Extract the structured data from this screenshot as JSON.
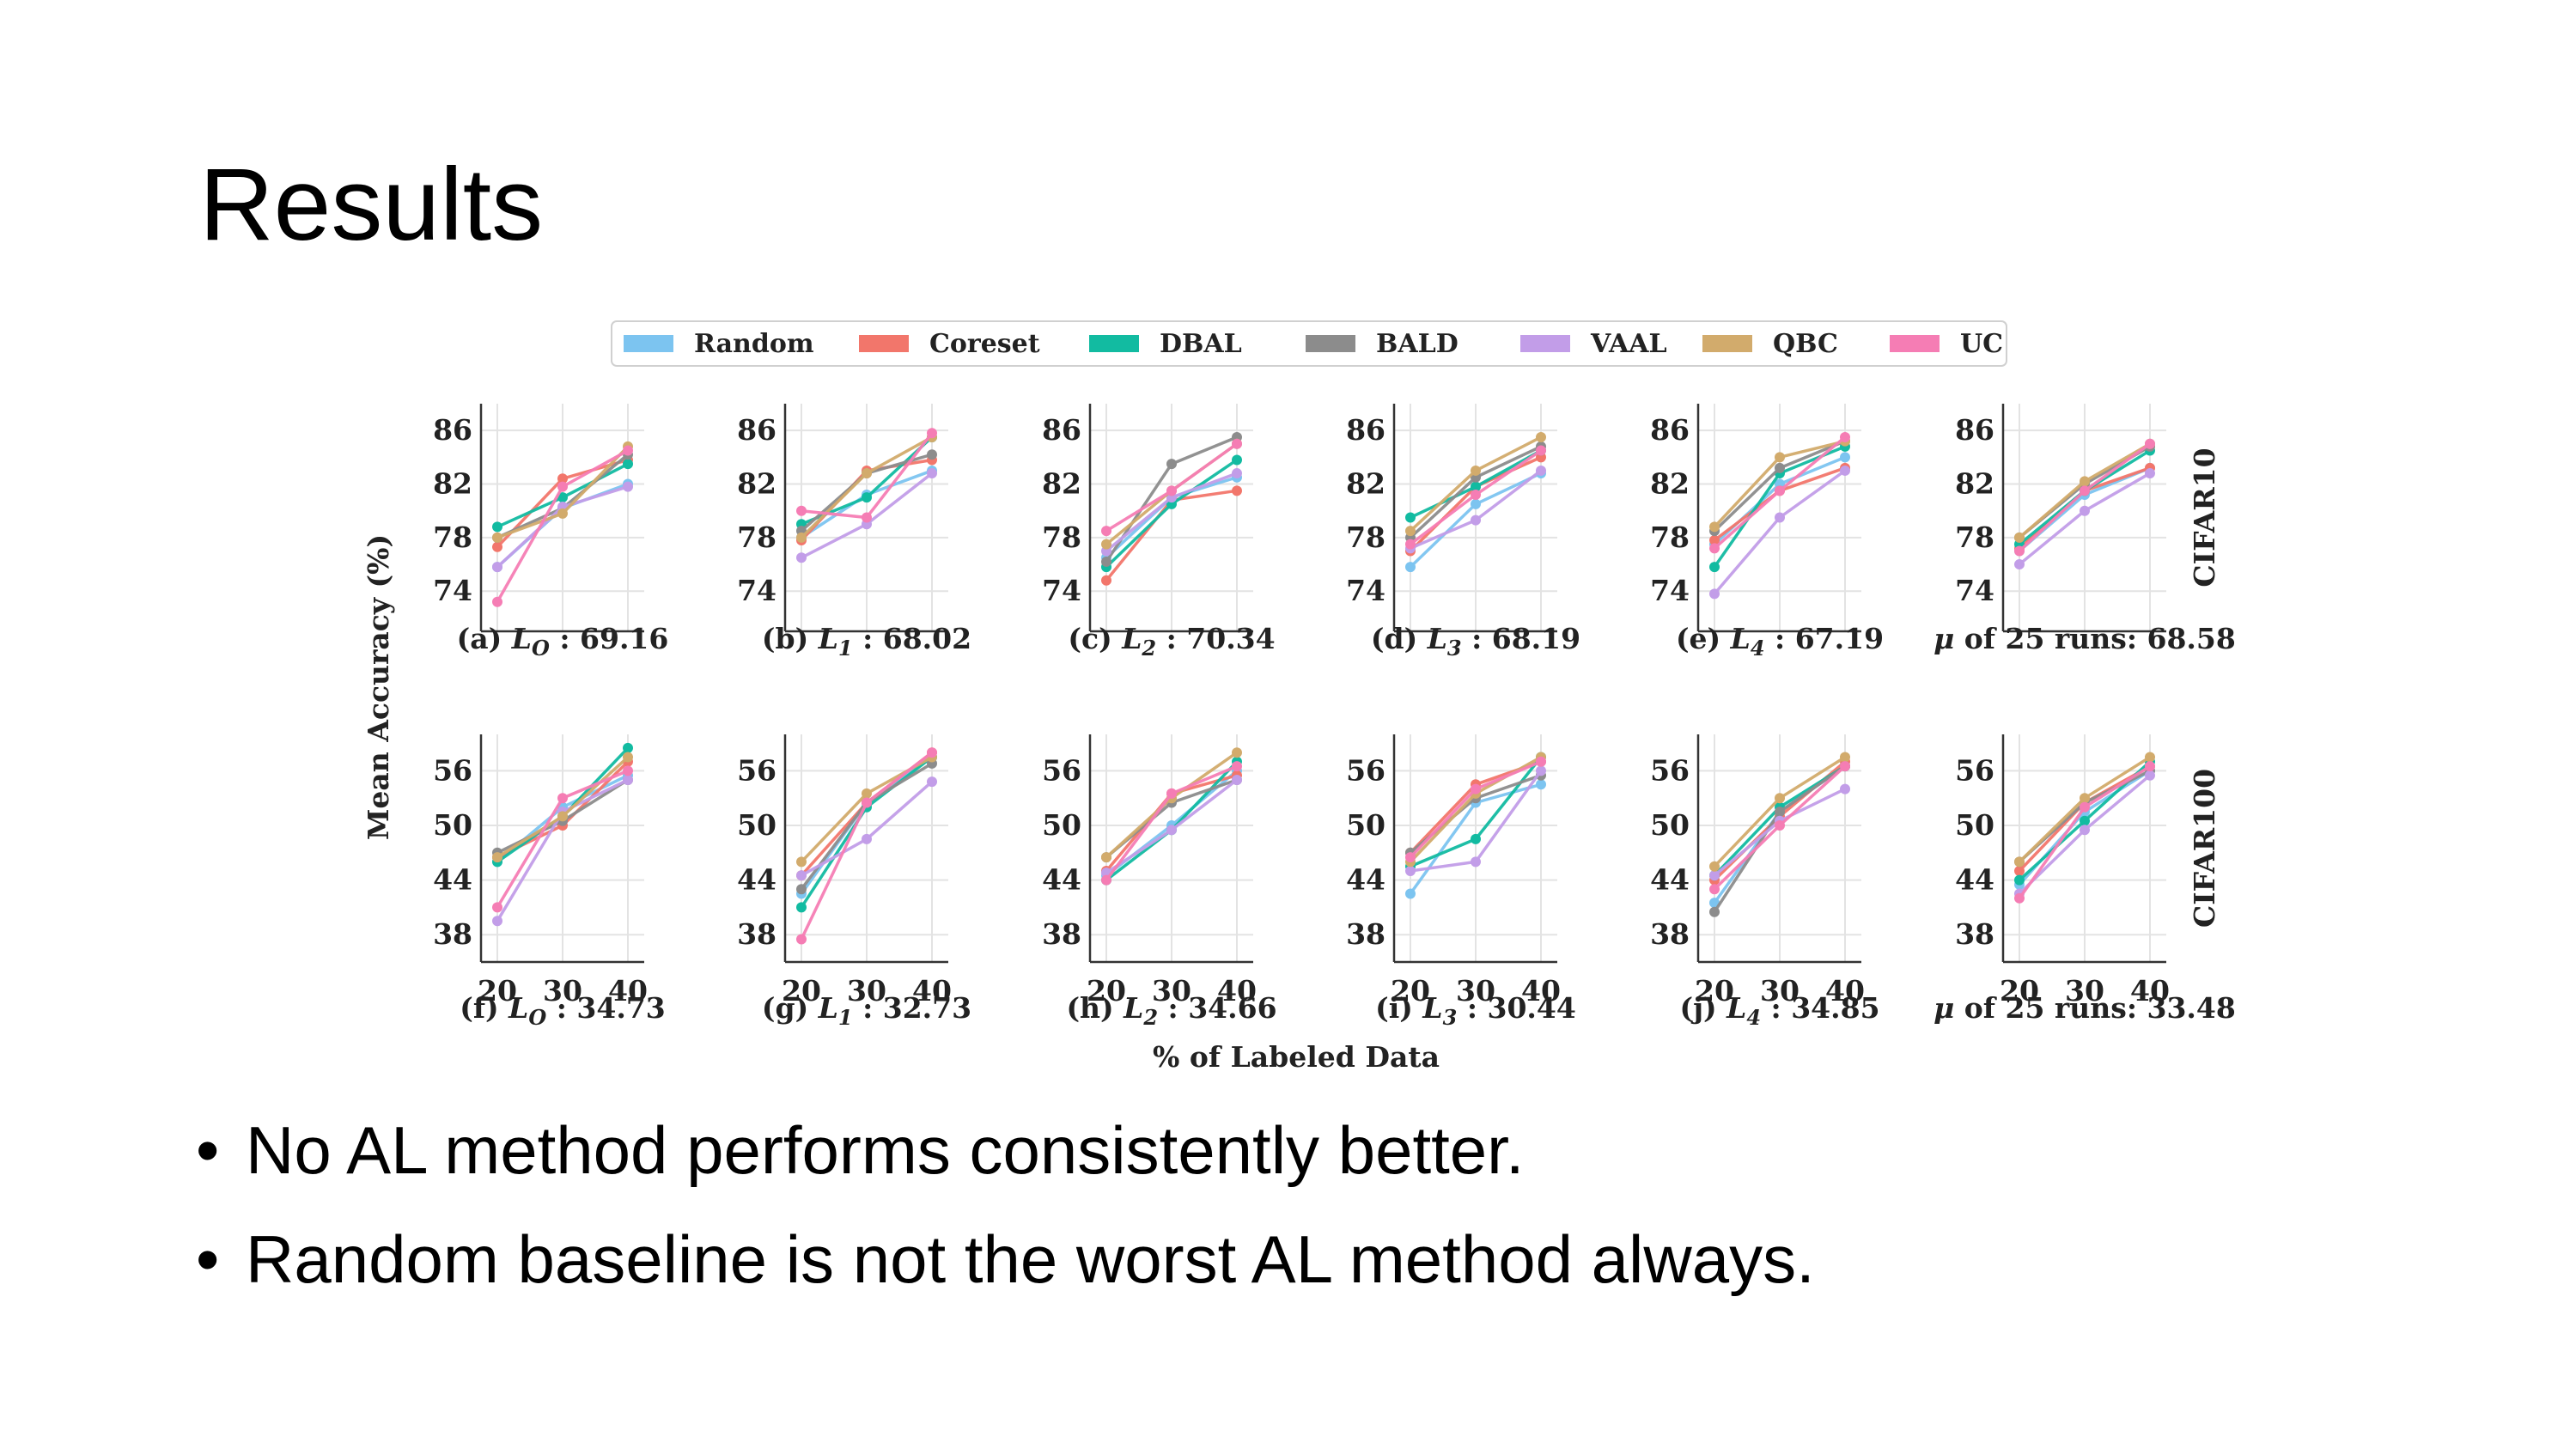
{
  "slide": {
    "title": "Results",
    "bullets": [
      "No AL method performs consistently better.",
      "Random baseline is not the worst AL method always."
    ],
    "bullet_symbol": "•"
  },
  "chart_data": {
    "type": "line",
    "legend": {
      "placement": "top-center",
      "entries": [
        {
          "name": "Random",
          "color": "#7cc4f0"
        },
        {
          "name": "Coreset",
          "color": "#f2766b"
        },
        {
          "name": "DBAL",
          "color": "#12bba1"
        },
        {
          "name": "BALD",
          "color": "#8c8c8c"
        },
        {
          "name": "VAAL",
          "color": "#c29de8"
        },
        {
          "name": "QBC",
          "color": "#d2ab6c"
        },
        {
          "name": "UC",
          "color": "#f57db4"
        }
      ]
    },
    "ylabel": "Mean Accuracy (%)",
    "xlabel": "% of Labeled Data",
    "x": [
      20,
      30,
      40
    ],
    "grid": true,
    "rows": [
      {
        "dataset": "CIFAR10",
        "ylim": [
          71,
          88
        ],
        "yticks": [
          74,
          78,
          82,
          86
        ],
        "panels": [
          {
            "caption": {
              "prefix": "(a) ",
              "sym": "L",
              "sub": "O",
              "suffix": " : 69.16"
            },
            "series": {
              "Random": [
                75.8,
                80.2,
                82.0
              ],
              "Coreset": [
                77.3,
                82.4,
                83.8
              ],
              "DBAL": [
                78.8,
                81.0,
                83.5
              ],
              "BALD": [
                78.0,
                80.2,
                84.2
              ],
              "VAAL": [
                75.8,
                80.3,
                81.8
              ],
              "QBC": [
                78.0,
                79.8,
                84.8
              ],
              "UC": [
                73.2,
                81.8,
                84.5
              ]
            }
          },
          {
            "caption": {
              "prefix": "(b) ",
              "sym": "L",
              "sub": "1",
              "suffix": " : 68.02"
            },
            "series": {
              "Random": [
                78.0,
                81.2,
                83.0
              ],
              "Coreset": [
                77.8,
                83.0,
                83.8
              ],
              "DBAL": [
                79.0,
                81.0,
                85.5
              ],
              "BALD": [
                78.5,
                82.8,
                84.2
              ],
              "VAAL": [
                76.5,
                79.0,
                82.8
              ],
              "QBC": [
                78.0,
                82.8,
                85.5
              ],
              "UC": [
                80.0,
                79.5,
                85.8
              ]
            }
          },
          {
            "caption": {
              "prefix": "(c) ",
              "sym": "L",
              "sub": "2",
              "suffix": " : 70.34"
            },
            "series": {
              "Random": [
                76.5,
                81.0,
                82.5
              ],
              "Coreset": [
                74.8,
                80.8,
                81.5
              ],
              "DBAL": [
                75.8,
                80.5,
                83.8
              ],
              "BALD": [
                76.2,
                83.5,
                85.5
              ],
              "VAAL": [
                77.0,
                81.0,
                82.8
              ],
              "QBC": [
                77.5,
                81.5,
                85.0
              ],
              "UC": [
                78.5,
                81.5,
                85.0
              ]
            }
          },
          {
            "caption": {
              "prefix": "(d) ",
              "sym": "L",
              "sub": "3",
              "suffix": " : 68.19"
            },
            "series": {
              "Random": [
                75.8,
                80.5,
                82.8
              ],
              "Coreset": [
                77.0,
                81.8,
                84.0
              ],
              "DBAL": [
                79.5,
                81.8,
                84.5
              ],
              "BALD": [
                78.0,
                82.5,
                84.8
              ],
              "VAAL": [
                77.2,
                79.3,
                83.0
              ],
              "QBC": [
                78.5,
                83.0,
                85.5
              ],
              "UC": [
                77.5,
                81.2,
                84.5
              ]
            }
          },
          {
            "caption": {
              "prefix": "(e) ",
              "sym": "L",
              "sub": "4",
              "suffix": " : 67.19"
            },
            "series": {
              "Random": [
                77.5,
                82.0,
                84.0
              ],
              "Coreset": [
                77.8,
                81.5,
                83.2
              ],
              "DBAL": [
                75.8,
                82.8,
                84.8
              ],
              "BALD": [
                78.5,
                83.2,
                85.2
              ],
              "VAAL": [
                73.8,
                79.5,
                83.0
              ],
              "QBC": [
                78.8,
                84.0,
                85.2
              ],
              "UC": [
                77.2,
                81.5,
                85.5
              ]
            }
          },
          {
            "caption": {
              "prefix": "",
              "sym": "μ",
              "sub": "",
              "suffix": " of 25 runs: 68.58"
            },
            "series": {
              "Random": [
                77.0,
                81.2,
                83.2
              ],
              "Coreset": [
                77.2,
                81.5,
                83.2
              ],
              "DBAL": [
                77.5,
                81.5,
                84.5
              ],
              "BALD": [
                78.0,
                82.0,
                84.8
              ],
              "VAAL": [
                76.0,
                80.0,
                82.8
              ],
              "QBC": [
                78.0,
                82.2,
                85.0
              ],
              "UC": [
                77.0,
                81.5,
                85.0
              ]
            }
          }
        ]
      },
      {
        "dataset": "CIFAR100",
        "ylim": [
          35,
          60
        ],
        "yticks": [
          38,
          44,
          50,
          56
        ],
        "panels": [
          {
            "caption": {
              "prefix": "(f) ",
              "sym": "L",
              "sub": "O",
              "suffix": " : 34.73"
            },
            "series": {
              "Random": [
                46.0,
                52.0,
                55.5
              ],
              "Coreset": [
                46.5,
                50.0,
                57.0
              ],
              "DBAL": [
                46.0,
                51.0,
                58.5
              ],
              "BALD": [
                47.0,
                50.5,
                55.0
              ],
              "VAAL": [
                39.5,
                51.5,
                55.0
              ],
              "QBC": [
                46.5,
                51.0,
                57.5
              ],
              "UC": [
                41.0,
                53.0,
                56.0
              ]
            }
          },
          {
            "caption": {
              "prefix": "(g) ",
              "sym": "L",
              "sub": "1",
              "suffix": " : 32.73"
            },
            "series": {
              "Random": [
                42.5,
                52.5,
                57.5
              ],
              "Coreset": [
                44.5,
                52.5,
                58.0
              ],
              "DBAL": [
                41.0,
                52.0,
                57.5
              ],
              "BALD": [
                43.0,
                52.5,
                56.8
              ],
              "VAAL": [
                44.5,
                48.5,
                54.8
              ],
              "QBC": [
                46.0,
                53.5,
                57.5
              ],
              "UC": [
                37.5,
                52.5,
                58.0
              ]
            }
          },
          {
            "caption": {
              "prefix": "(h) ",
              "sym": "L",
              "sub": "2",
              "suffix": " : 34.66"
            },
            "series": {
              "Random": [
                44.5,
                50.0,
                56.0
              ],
              "Coreset": [
                45.0,
                53.5,
                55.5
              ],
              "DBAL": [
                44.0,
                49.5,
                57.0
              ],
              "BALD": [
                46.5,
                52.5,
                55.0
              ],
              "VAAL": [
                44.8,
                49.5,
                55.0
              ],
              "QBC": [
                46.5,
                53.0,
                58.0
              ],
              "UC": [
                44.0,
                53.5,
                56.5
              ]
            }
          },
          {
            "caption": {
              "prefix": "(i) ",
              "sym": "L",
              "sub": "3",
              "suffix": " : 30.44"
            },
            "series": {
              "Random": [
                42.5,
                52.5,
                54.5
              ],
              "Coreset": [
                47.0,
                54.5,
                57.0
              ],
              "DBAL": [
                45.5,
                48.5,
                57.5
              ],
              "BALD": [
                47.0,
                53.0,
                55.5
              ],
              "VAAL": [
                45.0,
                46.0,
                56.0
              ],
              "QBC": [
                46.0,
                53.5,
                57.5
              ],
              "UC": [
                46.5,
                54.0,
                57.0
              ]
            }
          },
          {
            "caption": {
              "prefix": "(j) ",
              "sym": "L",
              "sub": "4",
              "suffix": " : 34.85"
            },
            "series": {
              "Random": [
                41.5,
                51.5,
                56.5
              ],
              "Coreset": [
                44.0,
                51.0,
                57.0
              ],
              "DBAL": [
                44.5,
                52.0,
                56.5
              ],
              "BALD": [
                40.5,
                51.5,
                56.5
              ],
              "VAAL": [
                44.5,
                50.5,
                54.0
              ],
              "QBC": [
                45.5,
                53.0,
                57.5
              ],
              "UC": [
                43.0,
                50.0,
                56.5
              ]
            }
          },
          {
            "caption": {
              "prefix": "",
              "sym": "μ",
              "sub": "",
              "suffix": " of 25 runs: 33.48"
            },
            "series": {
              "Random": [
                43.5,
                51.5,
                56.0
              ],
              "Coreset": [
                45.0,
                52.5,
                56.5
              ],
              "DBAL": [
                44.0,
                50.5,
                57.0
              ],
              "BALD": [
                46.0,
                52.5,
                56.0
              ],
              "VAAL": [
                42.5,
                49.5,
                55.5
              ],
              "QBC": [
                46.0,
                53.0,
                57.5
              ],
              "UC": [
                42.0,
                52.0,
                56.5
              ]
            }
          }
        ]
      }
    ]
  }
}
